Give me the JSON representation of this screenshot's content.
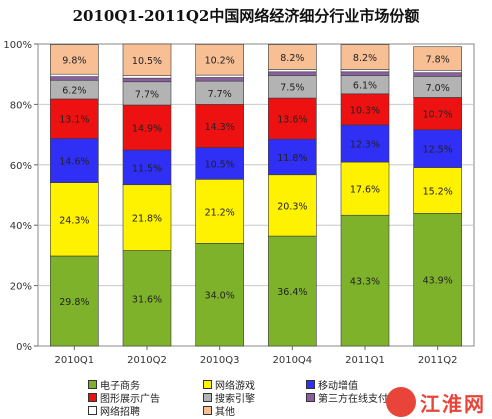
{
  "chart_data": {
    "type": "bar",
    "stacked": true,
    "title": "2010Q1-2011Q2中国网络经济细分行业市场份额",
    "categories": [
      "2010Q1",
      "2010Q2",
      "2010Q3",
      "2010Q4",
      "2011Q1",
      "2011Q2"
    ],
    "ylim": [
      0,
      100
    ],
    "yticks": [
      "0%",
      "20%",
      "40%",
      "60%",
      "80%",
      "100%"
    ],
    "grid": true,
    "legend_position": "bottom",
    "series": [
      {
        "name": "电子商务",
        "color": "#7fb22b",
        "values": [
          29.8,
          31.6,
          34.0,
          36.4,
          43.3,
          43.9
        ],
        "labels": [
          "29.8%",
          "31.6%",
          "34.0%",
          "36.4%",
          "43.3%",
          "43.9%"
        ]
      },
      {
        "name": "网络游戏",
        "color": "#fff200",
        "values": [
          24.3,
          21.8,
          21.2,
          20.3,
          17.6,
          15.2
        ],
        "labels": [
          "24.3%",
          "21.8%",
          "21.2%",
          "20.3%",
          "17.6%",
          "15.2%"
        ]
      },
      {
        "name": "移动增值",
        "color": "#2f2ff5",
        "values": [
          14.6,
          11.5,
          10.5,
          11.8,
          12.3,
          12.5
        ],
        "labels": [
          "14.6%",
          "11.5%",
          "10.5%",
          "11.8%",
          "12.3%",
          "12.5%"
        ]
      },
      {
        "name": "图形展示广告",
        "color": "#ee1111",
        "values": [
          13.1,
          14.9,
          14.3,
          13.6,
          10.3,
          10.7
        ],
        "labels": [
          "13.1%",
          "14.9%",
          "14.3%",
          "13.6%",
          "10.3%",
          "10.7%"
        ]
      },
      {
        "name": "搜索引擎",
        "color": "#b3b3b3",
        "values": [
          6.2,
          7.7,
          7.7,
          7.5,
          6.1,
          7.0
        ],
        "labels": [
          "6.2%",
          "7.7%",
          "7.7%",
          "7.5%",
          "6.1%",
          "7.0%"
        ]
      },
      {
        "name": "第三方在线支付",
        "color": "#8a5fa0",
        "values": [
          1.2,
          1.2,
          1.2,
          1.2,
          1.2,
          1.2
        ],
        "labels": [
          "",
          "",
          "",
          "",
          "",
          ""
        ]
      },
      {
        "name": "网络招聘",
        "color": "#ffffff",
        "values": [
          0.8,
          0.8,
          0.8,
          0.8,
          0.8,
          0.8
        ],
        "labels": [
          "",
          "",
          "",
          "",
          "",
          ""
        ]
      },
      {
        "name": "其他",
        "color": "#f8bf95",
        "values": [
          9.8,
          10.5,
          10.2,
          8.2,
          8.2,
          7.8
        ],
        "labels": [
          "9.8%",
          "10.5%",
          "10.2%",
          "8.2%",
          "8.2%",
          "7.8%"
        ]
      }
    ]
  },
  "legend": {
    "items": [
      {
        "label": "电子商务",
        "color": "#7fb22b"
      },
      {
        "label": "网络游戏",
        "color": "#fff200"
      },
      {
        "label": "移动增值",
        "color": "#2f2ff5"
      },
      {
        "label": "图形展示广告",
        "color": "#ee1111"
      },
      {
        "label": "搜索引擎",
        "color": "#b3b3b3"
      },
      {
        "label": "第三方在线支付",
        "color": "#8a5fa0"
      },
      {
        "label": "网络招聘",
        "color": "#ffffff"
      },
      {
        "label": "其他",
        "color": "#f8bf95"
      }
    ]
  },
  "watermark": {
    "text": "江淮网"
  }
}
